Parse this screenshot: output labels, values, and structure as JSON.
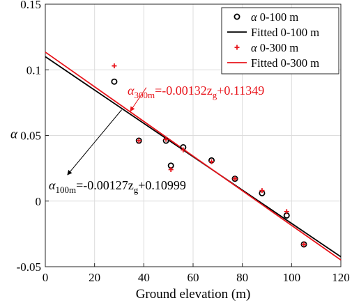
{
  "chart_data": {
    "type": "scatter",
    "xlabel": "Ground elevation (m)",
    "ylabel": "α",
    "xlim": [
      0,
      120
    ],
    "ylim": [
      -0.05,
      0.15
    ],
    "xticks": [
      "0",
      "20",
      "40",
      "60",
      "80",
      "100",
      "120"
    ],
    "yticks": [
      "-0.05",
      "0",
      "0.05",
      "0.1",
      "0.15"
    ],
    "grid": true,
    "legend_position": "top-right",
    "colors": {
      "series_100": "#000000",
      "series_300": "#e8141b"
    },
    "series": [
      {
        "name": "α 0-100 m",
        "marker": "circle",
        "color": "#000000",
        "x": [
          28,
          38,
          49,
          51,
          56,
          67.5,
          77,
          88,
          98,
          105
        ],
        "y": [
          0.091,
          0.046,
          0.046,
          0.027,
          0.041,
          0.031,
          0.017,
          0.006,
          -0.011,
          -0.033
        ]
      },
      {
        "name": "α 0-300 m",
        "marker": "plus",
        "color": "#e8141b",
        "x": [
          28,
          38,
          49,
          51,
          56,
          67.5,
          77,
          88,
          98,
          105
        ],
        "y": [
          0.103,
          0.046,
          0.047,
          0.024,
          0.039,
          0.03,
          0.017,
          0.008,
          -0.008,
          -0.033
        ]
      }
    ],
    "fits": [
      {
        "name": "Fitted 0-100 m",
        "color": "#000000",
        "slope": -0.00127,
        "intercept": 0.10999,
        "x_range": [
          0,
          120
        ],
        "label_main": "α",
        "label_sub": "100m",
        "label_rest": "=-0.00127z",
        "label_sub2": "g",
        "label_tail": "+0.10999"
      },
      {
        "name": "Fitted 0-300 m",
        "color": "#e8141b",
        "slope": -0.00132,
        "intercept": 0.11349,
        "x_range": [
          0,
          120
        ],
        "label_main": "α",
        "label_sub": "300m",
        "label_rest": "=-0.00132z",
        "label_sub2": "g",
        "label_tail": "+0.11349"
      }
    ]
  }
}
